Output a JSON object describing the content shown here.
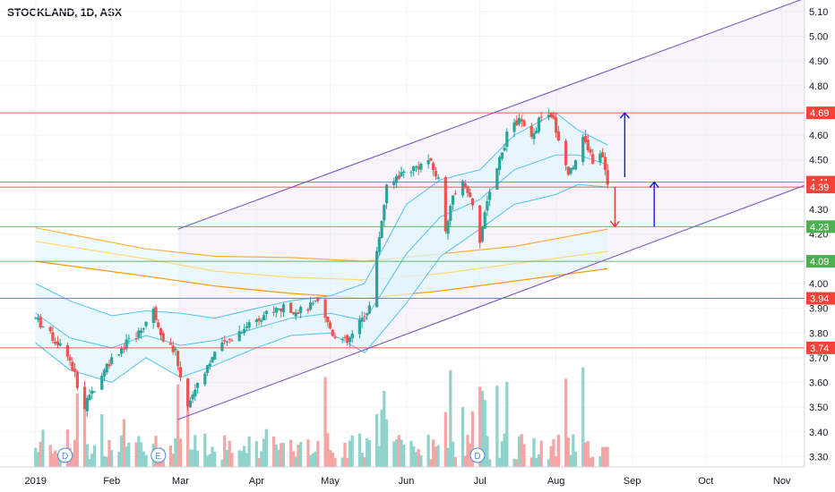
{
  "header": {
    "symbol": "STOCKLAND",
    "interval": "1D",
    "exchange": "ASX"
  },
  "colors": {
    "up": "#26a69a",
    "down": "#ef5350",
    "up_vol": "#8fd3cc",
    "down_vol": "#f5a5a3",
    "channel": "#7e57c2",
    "channel_fill": "#ede7f6",
    "resistance": "#f44336",
    "support": "#4caf50",
    "band": "#4fc3f7",
    "band_fill": "#e1f5fe",
    "ma_orange": "#ff9800",
    "ma_yellow": "#ffd54f",
    "arrow_up": "#1a1adb",
    "arrow_down": "#e53935",
    "grid": "#f0f3fa",
    "axis_text": "#131722"
  },
  "chart_data": {
    "type": "candlestick",
    "title": "STOCKLAND, 1D, ASX",
    "ylim": [
      3.25,
      5.1
    ],
    "y_ticks": [
      "3.30",
      "3.40",
      "3.50",
      "3.60",
      "3.70",
      "3.80",
      "3.90",
      "4.00",
      "4.10",
      "4.20",
      "4.30",
      "4.40",
      "4.50",
      "4.60",
      "4.70",
      "4.80",
      "4.90",
      "5.00",
      "5.10"
    ],
    "x_labels": [
      {
        "label": "2019",
        "date": "2019-01-01"
      },
      {
        "label": "Feb",
        "date": "2019-02-01"
      },
      {
        "label": "Mar",
        "date": "2019-03-01"
      },
      {
        "label": "Apr",
        "date": "2019-04-01"
      },
      {
        "label": "May",
        "date": "2019-05-01"
      },
      {
        "label": "Jun",
        "date": "2019-06-01"
      },
      {
        "label": "Jul",
        "date": "2019-07-01"
      },
      {
        "label": "Aug",
        "date": "2019-08-01"
      },
      {
        "label": "Sep",
        "date": "2019-09-01"
      },
      {
        "label": "Oct",
        "date": "2019-10-01"
      },
      {
        "label": "Nov",
        "date": "2019-11-01"
      }
    ],
    "horizontal_levels": [
      {
        "value": 4.69,
        "label": "4.69",
        "kind": "resistance"
      },
      {
        "value": 4.41,
        "label": "4.41",
        "kind": "resistance"
      },
      {
        "value": 4.39,
        "label": "4.39",
        "kind": "resistance"
      },
      {
        "value": 4.23,
        "label": "4.23",
        "kind": "support"
      },
      {
        "value": 4.09,
        "label": "4.09",
        "kind": "support"
      },
      {
        "value": 3.94,
        "label": "3.94",
        "kind": "resistance"
      },
      {
        "value": 3.74,
        "label": "3.74",
        "kind": "resistance"
      }
    ],
    "channel": {
      "upper": [
        [
          "2019-02-28",
          4.22
        ],
        [
          "2019-11-15",
          5.17
        ]
      ],
      "lower": [
        [
          "2019-02-28",
          3.45
        ],
        [
          "2019-11-30",
          4.47
        ]
      ]
    },
    "ma_fast": [
      [
        "2019-01-01",
        4.225
      ],
      [
        "2019-02-15",
        4.14
      ],
      [
        "2019-03-15",
        4.11
      ],
      [
        "2019-04-15",
        4.105
      ],
      [
        "2019-05-15",
        4.09
      ],
      [
        "2019-06-15",
        4.12
      ],
      [
        "2019-07-15",
        4.15
      ],
      [
        "2019-08-22",
        4.22
      ]
    ],
    "ma_mid": [
      [
        "2019-01-01",
        4.17
      ],
      [
        "2019-02-15",
        4.1
      ],
      [
        "2019-03-15",
        4.05
      ],
      [
        "2019-04-15",
        4.025
      ],
      [
        "2019-05-15",
        4.015
      ],
      [
        "2019-06-15",
        4.04
      ],
      [
        "2019-07-15",
        4.08
      ],
      [
        "2019-08-22",
        4.13
      ]
    ],
    "ma_slow": [
      [
        "2019-01-01",
        4.09
      ],
      [
        "2019-02-15",
        4.03
      ],
      [
        "2019-03-15",
        3.99
      ],
      [
        "2019-04-15",
        3.96
      ],
      [
        "2019-05-15",
        3.94
      ],
      [
        "2019-06-15",
        3.97
      ],
      [
        "2019-07-15",
        4.01
      ],
      [
        "2019-08-22",
        4.06
      ]
    ],
    "bb_upper": [
      [
        "2019-01-01",
        4.0
      ],
      [
        "2019-01-15",
        3.93
      ],
      [
        "2019-02-01",
        3.87
      ],
      [
        "2019-02-15",
        3.89
      ],
      [
        "2019-03-01",
        3.88
      ],
      [
        "2019-03-15",
        3.86
      ],
      [
        "2019-04-01",
        3.9
      ],
      [
        "2019-04-15",
        3.93
      ],
      [
        "2019-05-01",
        3.95
      ],
      [
        "2019-05-15",
        4.0
      ],
      [
        "2019-06-01",
        4.32
      ],
      [
        "2019-06-15",
        4.42
      ],
      [
        "2019-07-01",
        4.46
      ],
      [
        "2019-07-15",
        4.6
      ],
      [
        "2019-08-01",
        4.69
      ],
      [
        "2019-08-10",
        4.62
      ],
      [
        "2019-08-22",
        4.56
      ]
    ],
    "bb_mid": [
      [
        "2019-01-01",
        3.88
      ],
      [
        "2019-01-15",
        3.78
      ],
      [
        "2019-02-01",
        3.74
      ],
      [
        "2019-02-15",
        3.79
      ],
      [
        "2019-03-01",
        3.75
      ],
      [
        "2019-03-15",
        3.77
      ],
      [
        "2019-04-01",
        3.82
      ],
      [
        "2019-04-15",
        3.86
      ],
      [
        "2019-05-01",
        3.88
      ],
      [
        "2019-05-15",
        3.85
      ],
      [
        "2019-06-01",
        4.12
      ],
      [
        "2019-06-15",
        4.27
      ],
      [
        "2019-07-01",
        4.34
      ],
      [
        "2019-07-15",
        4.46
      ],
      [
        "2019-08-01",
        4.52
      ],
      [
        "2019-08-10",
        4.52
      ],
      [
        "2019-08-22",
        4.48
      ]
    ],
    "bb_lower": [
      [
        "2019-01-01",
        3.76
      ],
      [
        "2019-01-15",
        3.65
      ],
      [
        "2019-02-01",
        3.6
      ],
      [
        "2019-02-15",
        3.7
      ],
      [
        "2019-03-01",
        3.62
      ],
      [
        "2019-03-15",
        3.67
      ],
      [
        "2019-04-01",
        3.74
      ],
      [
        "2019-04-15",
        3.79
      ],
      [
        "2019-05-01",
        3.8
      ],
      [
        "2019-05-15",
        3.72
      ],
      [
        "2019-06-01",
        3.92
      ],
      [
        "2019-06-15",
        4.11
      ],
      [
        "2019-07-01",
        4.22
      ],
      [
        "2019-07-15",
        4.32
      ],
      [
        "2019-08-01",
        4.36
      ],
      [
        "2019-08-10",
        4.4
      ],
      [
        "2019-08-22",
        4.39
      ]
    ],
    "price_anchors": [
      [
        "2019-01-01",
        3.86
      ],
      [
        "2019-01-08",
        3.78
      ],
      [
        "2019-01-14",
        3.72
      ],
      [
        "2019-01-21",
        3.5
      ],
      [
        "2019-01-25",
        3.58
      ],
      [
        "2019-01-29",
        3.66
      ],
      [
        "2019-02-05",
        3.74
      ],
      [
        "2019-02-12",
        3.8
      ],
      [
        "2019-02-18",
        3.89
      ],
      [
        "2019-02-22",
        3.78
      ],
      [
        "2019-02-27",
        3.72
      ],
      [
        "2019-03-04",
        3.5
      ],
      [
        "2019-03-08",
        3.6
      ],
      [
        "2019-03-15",
        3.72
      ],
      [
        "2019-03-22",
        3.78
      ],
      [
        "2019-03-29",
        3.84
      ],
      [
        "2019-04-05",
        3.88
      ],
      [
        "2019-04-12",
        3.9
      ],
      [
        "2019-04-19",
        3.89
      ],
      [
        "2019-04-26",
        3.92
      ],
      [
        "2019-05-02",
        3.8
      ],
      [
        "2019-05-08",
        3.76
      ],
      [
        "2019-05-13",
        3.84
      ],
      [
        "2019-05-17",
        3.91
      ],
      [
        "2019-05-20",
        4.12
      ],
      [
        "2019-05-22",
        4.26
      ],
      [
        "2019-05-24",
        4.41
      ],
      [
        "2019-05-31",
        4.45
      ],
      [
        "2019-06-07",
        4.48
      ],
      [
        "2019-06-10",
        4.5
      ],
      [
        "2019-06-14",
        4.42
      ],
      [
        "2019-06-17",
        4.22
      ],
      [
        "2019-06-20",
        4.35
      ],
      [
        "2019-06-24",
        4.42
      ],
      [
        "2019-06-28",
        4.31
      ],
      [
        "2019-07-01",
        4.18
      ],
      [
        "2019-07-05",
        4.38
      ],
      [
        "2019-07-08",
        4.46
      ],
      [
        "2019-07-12",
        4.6
      ],
      [
        "2019-07-17",
        4.66
      ],
      [
        "2019-07-22",
        4.58
      ],
      [
        "2019-07-26",
        4.68
      ],
      [
        "2019-07-31",
        4.66
      ],
      [
        "2019-08-06",
        4.44
      ],
      [
        "2019-08-12",
        4.58
      ],
      [
        "2019-08-16",
        4.5
      ],
      [
        "2019-08-19",
        4.52
      ],
      [
        "2019-08-21",
        4.47
      ],
      [
        "2019-08-22",
        4.39
      ]
    ],
    "annotations": [
      {
        "type": "arrow",
        "direction": "up",
        "from": [
          "2019-08-29",
          4.43
        ],
        "to": [
          "2019-08-29",
          4.69
        ]
      },
      {
        "type": "arrow",
        "direction": "up",
        "from": [
          "2019-09-10",
          4.23
        ],
        "to": [
          "2019-09-10",
          4.41
        ]
      },
      {
        "type": "arrow",
        "direction": "down",
        "from": [
          "2019-08-25",
          4.39
        ],
        "to": [
          "2019-08-25",
          4.23
        ]
      }
    ],
    "events": [
      {
        "label": "D",
        "date": "2019-01-13"
      },
      {
        "label": "E",
        "date": "2019-02-20"
      },
      {
        "label": "D",
        "date": "2019-06-30"
      }
    ]
  }
}
